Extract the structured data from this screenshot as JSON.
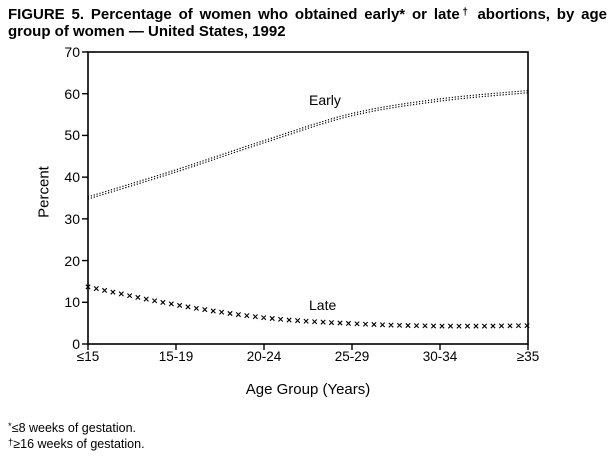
{
  "title": {
    "line1_pre": "FIGURE 5. Percentage of women who obtained early* or late",
    "line1_sup": "†",
    "line1_post": " abortions, by age",
    "line2": "group of women — United States, 1992"
  },
  "chart_data": {
    "type": "line",
    "title": "FIGURE 5. Percentage of women who obtained early* or late† abortions, by age group of women — United States, 1992",
    "categories": [
      "≤15",
      "15-19",
      "20-24",
      "25-29",
      "30-34",
      "≥35"
    ],
    "series": [
      {
        "name": "Early",
        "style": "dotted-line",
        "values": [
          35,
          41.5,
          48.5,
          55,
          58.5,
          60.5
        ]
      },
      {
        "name": "Late",
        "style": "x-markers",
        "values": [
          13.7,
          9.4,
          6.3,
          4.9,
          4.3,
          4.4
        ]
      }
    ],
    "xlabel": "Age Group (Years)",
    "ylabel": "Percent",
    "ylim": [
      0,
      70
    ],
    "y_ticks": [
      0,
      10,
      20,
      30,
      40,
      50,
      60,
      70
    ],
    "grid": false,
    "legend_position": "inline-labels",
    "line_color": "#000000",
    "background_color": "#ffffff"
  },
  "footnotes": [
    {
      "marker": "*",
      "text": "≤8 weeks of gestation."
    },
    {
      "marker": "†",
      "text": "≥16 weeks of gestation."
    }
  ]
}
